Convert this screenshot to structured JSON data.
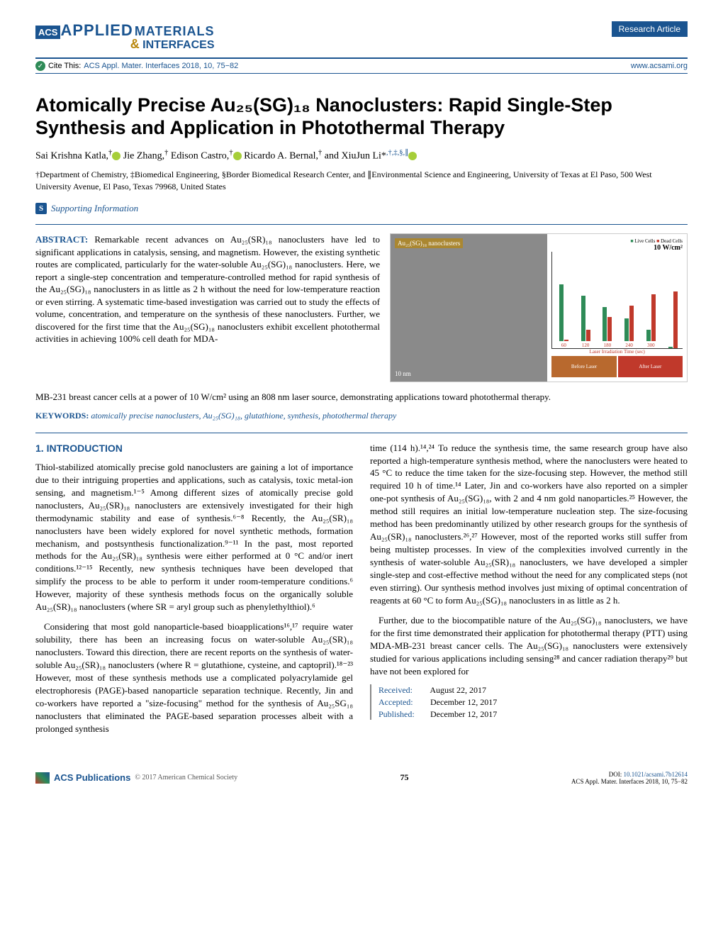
{
  "header": {
    "acs": "ACS",
    "applied": "APPLIED",
    "materials": "MATERIALS",
    "amp": "&",
    "interfaces": "INTERFACES",
    "badge": "Research Article",
    "cite_prefix": "Cite This:",
    "cite_text": "ACS Appl. Mater. Interfaces 2018, 10, 75−82",
    "www": "www.acsami.org"
  },
  "title": "Atomically Precise Au₂₅(SG)₁₈ Nanoclusters: Rapid Single-Step Synthesis and Application in Photothermal Therapy",
  "authors_html": "Sai Krishna Katla,<sup>†</sup> Jie Zhang,<sup>†</sup> Edison Castro,<sup>†</sup> Ricardo A. Bernal,<sup>†</sup> and XiuJun Li*<sup>,†,‡,§,∥</sup>",
  "affiliations": "†Department of Chemistry, ‡Biomedical Engineering, §Border Biomedical Research Center, and ∥Environmental Science and Engineering, University of Texas at El Paso, 500 West University Avenue, El Paso, Texas 79968, United States",
  "supporting": "Supporting Information",
  "abstract": {
    "label": "ABSTRACT:",
    "text1": "Remarkable recent advances on Au₂₅(SR)₁₈ nanoclusters have led to significant applications in catalysis, sensing, and magnetism. However, the existing synthetic routes are complicated, particularly for the water-soluble Au₂₅(SG)₁₈ nanoclusters. Here, we report a single-step concentration and temperature-controlled method for rapid synthesis of the Au₂₅(SG)₁₈ nanoclusters in as little as 2 h without the need for low-temperature reaction or even stirring. A systematic time-based investigation was carried out to study the effects of volume, concentration, and temperature on the synthesis of these nanoclusters. Further, we discovered for the first time that the Au₂₅(SG)₁₈ nanoclusters exhibit excellent photothermal activities in achieving 100% cell death for MDA-",
    "text2": "MB-231 breast cancer cells at a power of 10 W/cm² using an 808 nm laser source, demonstrating applications toward photothermal therapy."
  },
  "keywords": {
    "label": "KEYWORDS:",
    "text": "atomically precise nanoclusters, Au₂₅(SG)₁₈, glutathione, synthesis, photothermal therapy"
  },
  "toc": {
    "tem_label": "Au₂₅(SG)₁₈ nanoclusters",
    "tem_scale": "10 nm",
    "power": "10 W/cm²",
    "legend_live": "Live Cells",
    "legend_dead": "Dead Cells",
    "y_label": "% Cells",
    "x_label": "Laser Irradiation Time (sec)",
    "x_ticks": [
      "60",
      "120",
      "180",
      "240",
      "300"
    ],
    "bars": [
      {
        "live": 100,
        "dead": 2
      },
      {
        "live": 80,
        "dead": 20
      },
      {
        "live": 60,
        "dead": 42
      },
      {
        "live": 40,
        "dead": 62
      },
      {
        "live": 20,
        "dead": 82
      },
      {
        "live": 3,
        "dead": 100
      }
    ],
    "before": "Before Laser",
    "after": "After Laser",
    "colors": {
      "live": "#2e8b57",
      "dead": "#c0392b",
      "before_bg": "#b8692e",
      "after_bg": "#c0392b"
    }
  },
  "section1": {
    "heading": "1. INTRODUCTION",
    "p1": "Thiol-stabilized atomically precise gold nanoclusters are gaining a lot of importance due to their intriguing properties and applications, such as catalysis, toxic metal-ion sensing, and magnetism.¹⁻⁵ Among different sizes of atomically precise gold nanoclusters, Au₂₅(SR)₁₈ nanoclusters are extensively investigated for their high thermodynamic stability and ease of synthesis.⁶⁻⁸ Recently, the Au₂₅(SR)₁₈ nanoclusters have been widely explored for novel synthetic methods, formation mechanism, and postsynthesis functionalization.⁹⁻¹¹ In the past, most reported methods for the Au₂₅(SR)₁₈ synthesis were either performed at 0 °C and/or inert conditions.¹²⁻¹⁵ Recently, new synthesis techniques have been developed that simplify the process to be able to perform it under room-temperature conditions.⁶ However, majority of these synthesis methods focus on the organically soluble Au₂₅(SR)₁₈ nanoclusters (where SR = aryl group such as phenylethylthiol).⁶",
    "p2": "Considering that most gold nanoparticle-based bioapplications¹⁶,¹⁷ require water solubility, there has been an increasing focus on water-soluble Au₂₅(SR)₁₈ nanoclusters. Toward this direction, there are recent reports on the synthesis of water-soluble Au₂₅(SR)₁₈ nanoclusters (where R = glutathione, cysteine, and captopril).¹⁸⁻²³ However, most of these synthesis methods use a complicated polyacrylamide gel electrophoresis (PAGE)-based nanoparticle separation technique. Recently, Jin and co-workers have reported a \"size-focusing\" method for the synthesis of Au₂₅SG₁₈ nanoclusters that eliminated the PAGE-based separation processes albeit with a prolonged synthesis",
    "p3": "time (114 h).¹⁴,²⁴ To reduce the synthesis time, the same research group have also reported a high-temperature synthesis method, where the nanoclusters were heated to 45 °C to reduce the time taken for the size-focusing step. However, the method still required 10 h of time.¹⁴ Later, Jin and co-workers have also reported on a simpler one-pot synthesis of Au₂₅(SG)₁₈, with 2 and 4 nm gold nanoparticles.²⁵ However, the method still requires an initial low-temperature nucleation step. The size-focusing method has been predominantly utilized by other research groups for the synthesis of Au₂₅(SR)₁₈ nanoclusters.²⁶,²⁷ However, most of the reported works still suffer from being multistep processes. In view of the complexities involved currently in the synthesis of water-soluble Au₂₅(SR)₁₈ nanoclusters, we have developed a simpler single-step and cost-effective method without the need for any complicated steps (not even stirring). Our synthesis method involves just mixing of optimal concentration of reagents at 60 °C to form Au₂₅(SG)₁₈ nanoclusters in as little as 2 h.",
    "p4": "Further, due to the biocompatible nature of the Au₂₅(SG)₁₈ nanoclusters, we have for the first time demonstrated their application for photothermal therapy (PTT) using MDA-MB-231 breast cancer cells. The Au₂₅(SG)₁₈ nanoclusters were extensively studied for various applications including sensing²⁸ and cancer radiation therapy²⁹ but have not been explored for"
  },
  "dates": {
    "received_label": "Received:",
    "received": "August 22, 2017",
    "accepted_label": "Accepted:",
    "accepted": "December 12, 2017",
    "published_label": "Published:",
    "published": "December 12, 2017"
  },
  "footer": {
    "pub": "ACS Publications",
    "copyright": "© 2017 American Chemical Society",
    "page": "75",
    "doi_label": "DOI:",
    "doi": "10.1021/acsami.7b12614",
    "ref": "ACS Appl. Mater. Interfaces 2018, 10, 75−82"
  }
}
